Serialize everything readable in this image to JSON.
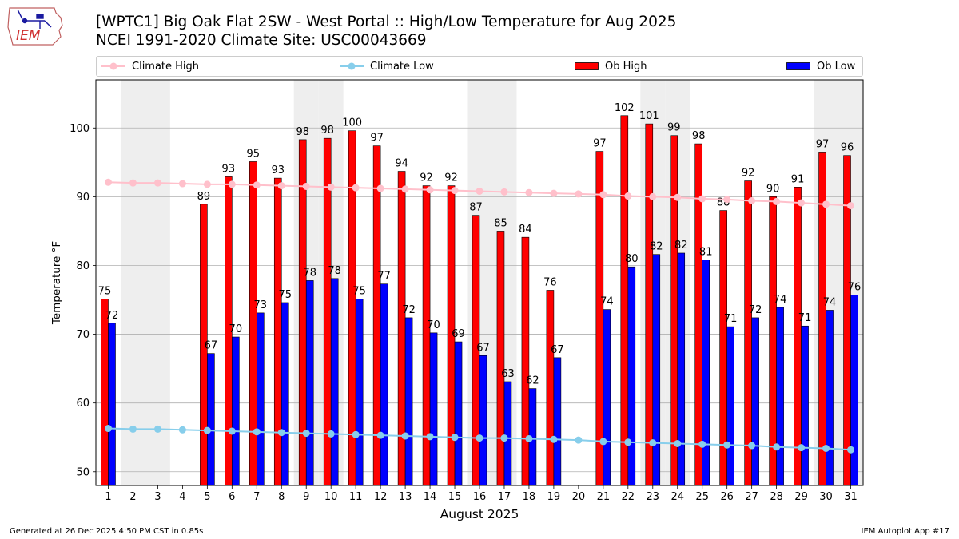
{
  "logo": {
    "text": "IEM"
  },
  "header": {
    "title_line1": "[WPTC1] Big Oak Flat 2SW - West Portal :: High/Low Temperature for Aug 2025",
    "title_line2": "NCEI 1991-2020 Climate Site: USC00043669"
  },
  "legend": {
    "items": [
      {
        "label": "Climate High",
        "color": "#ffc0cb",
        "kind": "line"
      },
      {
        "label": "Climate Low",
        "color": "#87ceeb",
        "kind": "line"
      },
      {
        "label": "Ob High",
        "color": "#ff0000",
        "kind": "bar"
      },
      {
        "label": "Ob Low",
        "color": "#0000ff",
        "kind": "bar"
      }
    ]
  },
  "footer": {
    "generated": "Generated at 26 Dec 2025 4:50 PM CST in 0.85s",
    "app": "IEM Autoplot App #17"
  },
  "chart_data": {
    "type": "bar",
    "xlabel": "August 2025",
    "ylabel": "Temperature °F",
    "ylim": [
      48,
      107
    ],
    "yticks": [
      50,
      60,
      70,
      80,
      90,
      100
    ],
    "grid": true,
    "legend_position": "top",
    "weekend_shading_days": [
      2,
      3,
      9,
      10,
      16,
      17,
      23,
      24,
      30,
      31
    ],
    "days": [
      1,
      2,
      3,
      4,
      5,
      6,
      7,
      8,
      9,
      10,
      11,
      12,
      13,
      14,
      15,
      16,
      17,
      18,
      19,
      20,
      21,
      22,
      23,
      24,
      25,
      26,
      27,
      28,
      29,
      30,
      31
    ],
    "series": [
      {
        "name": "Ob High",
        "color": "#ff0000",
        "values": [
          75.1,
          null,
          null,
          null,
          88.9,
          92.9,
          95.1,
          92.7,
          98.3,
          98.5,
          99.6,
          97.4,
          93.7,
          91.6,
          91.6,
          87.3,
          85.0,
          84.1,
          76.4,
          null,
          96.6,
          101.8,
          100.6,
          98.9,
          97.7,
          88.0,
          92.3,
          90.0,
          91.4,
          96.5,
          96.0
        ],
        "labels": [
          "75",
          "",
          "",
          "",
          "89",
          "93",
          "95",
          "93",
          "98",
          "98",
          "100",
          "97",
          "94",
          "92",
          "92",
          "87",
          "85",
          "84",
          "76",
          "",
          "97",
          "102",
          "101",
          "99",
          "98",
          "88",
          "92",
          "90",
          "91",
          "97",
          "96"
        ]
      },
      {
        "name": "Ob Low",
        "color": "#0000ff",
        "values": [
          71.6,
          null,
          null,
          null,
          67.2,
          69.6,
          73.1,
          74.6,
          77.8,
          78.1,
          75.1,
          77.3,
          72.4,
          70.2,
          68.9,
          66.9,
          63.1,
          62.1,
          66.6,
          null,
          73.6,
          79.8,
          81.6,
          81.8,
          80.8,
          71.1,
          72.4,
          73.9,
          71.2,
          73.5,
          75.7
        ],
        "labels": [
          "72",
          "",
          "",
          "",
          "67",
          "70",
          "73",
          "75",
          "78",
          "78",
          "75",
          "77",
          "72",
          "70",
          "69",
          "67",
          "63",
          "62",
          "67",
          "",
          "74",
          "80",
          "82",
          "82",
          "81",
          "71",
          "72",
          "74",
          "71",
          "74",
          "76"
        ]
      },
      {
        "name": "Climate High",
        "color": "#ffc0cb",
        "values": [
          92.1,
          92.0,
          92.0,
          91.9,
          91.8,
          91.8,
          91.7,
          91.6,
          91.5,
          91.4,
          91.3,
          91.2,
          91.1,
          91.0,
          90.9,
          90.8,
          90.7,
          90.6,
          90.5,
          90.4,
          90.3,
          90.1,
          90.0,
          89.9,
          89.7,
          89.6,
          89.4,
          89.3,
          89.1,
          88.9,
          88.7
        ]
      },
      {
        "name": "Climate Low",
        "color": "#87ceeb",
        "values": [
          56.3,
          56.2,
          56.2,
          56.1,
          56.0,
          55.9,
          55.8,
          55.7,
          55.6,
          55.5,
          55.4,
          55.3,
          55.2,
          55.1,
          55.0,
          54.9,
          54.9,
          54.8,
          54.7,
          54.6,
          54.4,
          54.3,
          54.2,
          54.1,
          54.0,
          53.9,
          53.8,
          53.6,
          53.5,
          53.4,
          53.2
        ]
      }
    ]
  }
}
